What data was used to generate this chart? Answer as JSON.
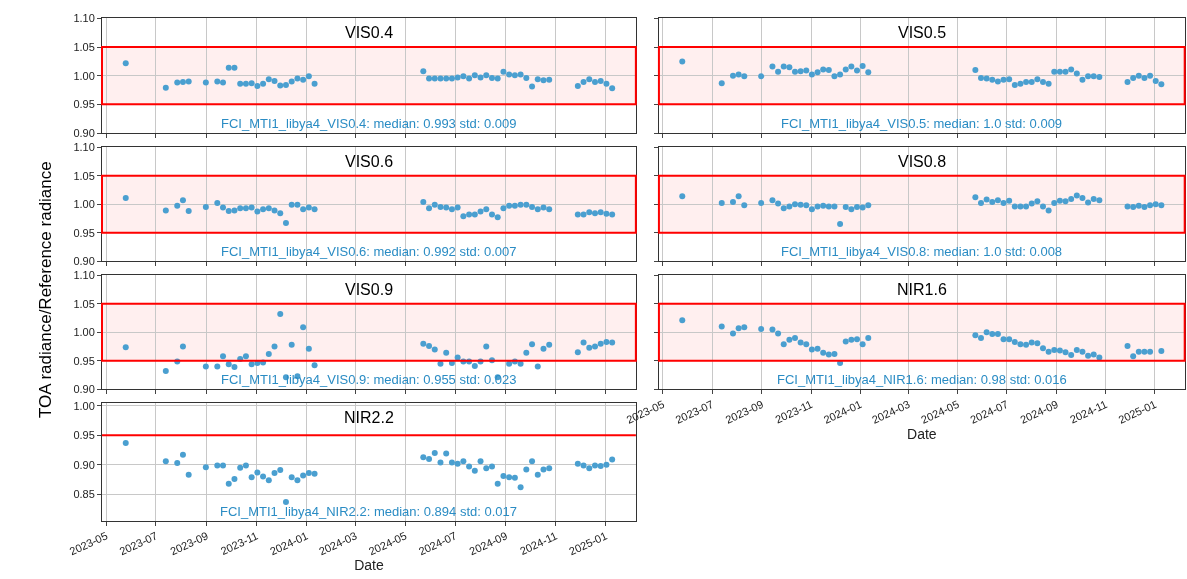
{
  "chart_data": [
    {
      "type": "scatter",
      "title": "VIS0.4",
      "color": "#4a9fd0",
      "marker": "circle",
      "grid": true,
      "tick_labels": "y",
      "x": [
        "2023-05-25",
        "2023-07-13",
        "2023-07-27",
        "2023-08-03",
        "2023-08-10",
        "2023-08-31",
        "2023-09-14",
        "2023-09-21",
        "2023-09-28",
        "2023-10-05",
        "2023-10-12",
        "2023-10-19",
        "2023-10-26",
        "2023-11-02",
        "2023-11-09",
        "2023-11-16",
        "2023-11-23",
        "2023-11-30",
        "2023-12-07",
        "2023-12-14",
        "2023-12-21",
        "2023-12-28",
        "2024-01-04",
        "2024-01-11",
        "2024-05-23",
        "2024-05-30",
        "2024-06-06",
        "2024-06-13",
        "2024-06-20",
        "2024-06-27",
        "2024-07-04",
        "2024-07-11",
        "2024-07-18",
        "2024-07-25",
        "2024-08-01",
        "2024-08-08",
        "2024-08-15",
        "2024-08-22",
        "2024-08-29",
        "2024-09-05",
        "2024-09-12",
        "2024-09-19",
        "2024-09-26",
        "2024-10-03",
        "2024-10-10",
        "2024-10-17",
        "2024-10-24",
        "2024-11-28",
        "2024-12-05",
        "2024-12-12",
        "2024-12-19",
        "2024-12-26",
        "2025-01-02",
        "2025-01-09"
      ],
      "values": [
        1.022,
        0.979,
        0.988,
        0.989,
        0.99,
        0.988,
        0.99,
        0.988,
        1.014,
        1.014,
        0.986,
        0.986,
        0.987,
        0.982,
        0.986,
        0.994,
        0.991,
        0.983,
        0.984,
        0.99,
        0.995,
        0.993,
        0.999,
        0.986,
        1.008,
        0.995,
        0.995,
        0.995,
        0.995,
        0.995,
        0.997,
        0.999,
        0.995,
        1.001,
        0.997,
        1.001,
        0.996,
        0.995,
        1.007,
        1.002,
        1.001,
        1.002,
        0.996,
        0.981,
        0.994,
        0.992,
        0.993,
        0.982,
        0.989,
        0.994,
        0.989,
        0.991,
        0.986,
        0.978
      ],
      "xlim": [
        "2023-04-26",
        "2025-02-07"
      ],
      "xticks": [
        {
          "value": "2023-05-01",
          "label": null
        },
        {
          "value": "2023-07-01",
          "label": null
        },
        {
          "value": "2023-09-01",
          "label": null
        },
        {
          "value": "2023-11-01",
          "label": null
        },
        {
          "value": "2024-01-01",
          "label": null
        },
        {
          "value": "2024-03-01",
          "label": null
        },
        {
          "value": "2024-05-01",
          "label": null
        },
        {
          "value": "2024-07-01",
          "label": null
        },
        {
          "value": "2024-09-01",
          "label": null
        },
        {
          "value": "2024-11-01",
          "label": null
        },
        {
          "value": "2025-01-01",
          "label": null
        }
      ],
      "ylim": [
        0.9,
        1.1
      ],
      "yticks": [
        {
          "value": 0.9,
          "label": "0.90"
        },
        {
          "value": 0.95,
          "label": "0.95"
        },
        {
          "value": 1.0,
          "label": "1.00"
        },
        {
          "value": 1.05,
          "label": "1.05"
        },
        {
          "value": 1.1,
          "label": "1.10"
        }
      ],
      "bands": [
        {
          "axis": "y",
          "from": 0.95,
          "to": 1.05,
          "color": "#ff0000"
        }
      ],
      "annotations": [
        "FCI_MTI1_libya4_VIS0.4: median: 0.993 std: 0.009"
      ]
    },
    {
      "type": "scatter",
      "title": "VIS0.5",
      "color": "#4a9fd0",
      "marker": "circle",
      "grid": true,
      "tick_labels": false,
      "x": [
        "2023-05-25",
        "2023-07-13",
        "2023-07-27",
        "2023-08-03",
        "2023-08-10",
        "2023-08-31",
        "2023-09-14",
        "2023-09-21",
        "2023-09-28",
        "2023-10-05",
        "2023-10-12",
        "2023-10-19",
        "2023-10-26",
        "2023-11-02",
        "2023-11-09",
        "2023-11-16",
        "2023-11-23",
        "2023-11-30",
        "2023-12-07",
        "2023-12-14",
        "2023-12-21",
        "2023-12-28",
        "2024-01-04",
        "2024-01-11",
        "2024-05-23",
        "2024-05-30",
        "2024-06-06",
        "2024-06-13",
        "2024-06-20",
        "2024-06-27",
        "2024-07-04",
        "2024-07-11",
        "2024-07-18",
        "2024-07-25",
        "2024-08-01",
        "2024-08-08",
        "2024-08-15",
        "2024-08-22",
        "2024-08-29",
        "2024-09-05",
        "2024-09-12",
        "2024-09-19",
        "2024-09-26",
        "2024-10-03",
        "2024-10-10",
        "2024-10-17",
        "2024-10-24",
        "2024-11-28",
        "2024-12-05",
        "2024-12-12",
        "2024-12-19",
        "2024-12-26",
        "2025-01-02",
        "2025-01-09"
      ],
      "values": [
        1.025,
        0.987,
        1.0,
        1.002,
        0.999,
        0.999,
        1.016,
        1.007,
        1.016,
        1.015,
        1.007,
        1.008,
        1.009,
        1.002,
        1.006,
        1.011,
        1.01,
        0.999,
        1.002,
        1.011,
        1.016,
        1.009,
        1.017,
        1.006,
        1.01,
        0.996,
        0.995,
        0.993,
        0.99,
        0.993,
        0.994,
        0.984,
        0.986,
        0.989,
        0.989,
        0.994,
        0.989,
        0.986,
        1.007,
        1.007,
        1.007,
        1.011,
        1.004,
        0.993,
        0.999,
        0.999,
        0.998,
        0.989,
        0.996,
        1.0,
        0.996,
        1.0,
        0.991,
        0.985
      ],
      "xlim": [
        "2023-04-26",
        "2025-02-07"
      ],
      "xticks": [
        {
          "value": "2023-05-01",
          "label": null
        },
        {
          "value": "2023-07-01",
          "label": null
        },
        {
          "value": "2023-09-01",
          "label": null
        },
        {
          "value": "2023-11-01",
          "label": null
        },
        {
          "value": "2024-01-01",
          "label": null
        },
        {
          "value": "2024-03-01",
          "label": null
        },
        {
          "value": "2024-05-01",
          "label": null
        },
        {
          "value": "2024-07-01",
          "label": null
        },
        {
          "value": "2024-09-01",
          "label": null
        },
        {
          "value": "2024-11-01",
          "label": null
        },
        {
          "value": "2025-01-01",
          "label": null
        }
      ],
      "ylim": [
        0.9,
        1.1
      ],
      "yticks": [
        {
          "value": 0.9,
          "label": null
        },
        {
          "value": 0.95,
          "label": null
        },
        {
          "value": 1.0,
          "label": null
        },
        {
          "value": 1.05,
          "label": null
        },
        {
          "value": 1.1,
          "label": null
        }
      ],
      "bands": [
        {
          "axis": "y",
          "from": 0.95,
          "to": 1.05,
          "color": "#ff0000"
        }
      ],
      "annotations": [
        "FCI_MTI1_libya4_VIS0.5: median: 1.0 std: 0.009"
      ]
    },
    {
      "type": "scatter",
      "title": "VIS0.6",
      "color": "#4a9fd0",
      "marker": "circle",
      "grid": true,
      "tick_labels": "y",
      "x": [
        "2023-05-25",
        "2023-07-13",
        "2023-07-27",
        "2023-08-03",
        "2023-08-10",
        "2023-08-31",
        "2023-09-14",
        "2023-09-21",
        "2023-09-28",
        "2023-10-05",
        "2023-10-12",
        "2023-10-19",
        "2023-10-26",
        "2023-11-02",
        "2023-11-09",
        "2023-11-16",
        "2023-11-23",
        "2023-11-30",
        "2023-12-07",
        "2023-12-14",
        "2023-12-21",
        "2023-12-28",
        "2024-01-04",
        "2024-01-11",
        "2024-05-23",
        "2024-05-30",
        "2024-06-06",
        "2024-06-13",
        "2024-06-20",
        "2024-06-27",
        "2024-07-04",
        "2024-07-11",
        "2024-07-18",
        "2024-07-25",
        "2024-08-01",
        "2024-08-08",
        "2024-08-15",
        "2024-08-22",
        "2024-08-29",
        "2024-09-05",
        "2024-09-12",
        "2024-09-19",
        "2024-09-26",
        "2024-10-03",
        "2024-10-10",
        "2024-10-17",
        "2024-10-24",
        "2024-11-28",
        "2024-12-05",
        "2024-12-12",
        "2024-12-19",
        "2024-12-26",
        "2025-01-02",
        "2025-01-09"
      ],
      "values": [
        1.011,
        0.989,
        0.997,
        1.007,
        0.988,
        0.995,
        1.002,
        0.994,
        0.988,
        0.989,
        0.993,
        0.993,
        0.994,
        0.987,
        0.991,
        0.993,
        0.989,
        0.984,
        0.967,
        0.999,
        0.999,
        0.991,
        0.994,
        0.991,
        1.004,
        0.993,
        0.999,
        0.995,
        0.994,
        0.991,
        0.994,
        0.979,
        0.982,
        0.982,
        0.987,
        0.991,
        0.982,
        0.977,
        0.993,
        0.997,
        0.997,
        0.999,
        0.999,
        0.995,
        0.991,
        0.994,
        0.991,
        0.982,
        0.982,
        0.986,
        0.984,
        0.986,
        0.983,
        0.982
      ],
      "xlim": [
        "2023-04-26",
        "2025-02-07"
      ],
      "xticks": [
        {
          "value": "2023-05-01",
          "label": null
        },
        {
          "value": "2023-07-01",
          "label": null
        },
        {
          "value": "2023-09-01",
          "label": null
        },
        {
          "value": "2023-11-01",
          "label": null
        },
        {
          "value": "2024-01-01",
          "label": null
        },
        {
          "value": "2024-03-01",
          "label": null
        },
        {
          "value": "2024-05-01",
          "label": null
        },
        {
          "value": "2024-07-01",
          "label": null
        },
        {
          "value": "2024-09-01",
          "label": null
        },
        {
          "value": "2024-11-01",
          "label": null
        },
        {
          "value": "2025-01-01",
          "label": null
        }
      ],
      "ylim": [
        0.9,
        1.1
      ],
      "yticks": [
        {
          "value": 0.9,
          "label": "0.90"
        },
        {
          "value": 0.95,
          "label": "0.95"
        },
        {
          "value": 1.0,
          "label": "1.00"
        },
        {
          "value": 1.05,
          "label": "1.05"
        },
        {
          "value": 1.1,
          "label": "1.10"
        }
      ],
      "bands": [
        {
          "axis": "y",
          "from": 0.95,
          "to": 1.05,
          "color": "#ff0000"
        }
      ],
      "annotations": [
        "FCI_MTI1_libya4_VIS0.6: median: 0.992 std: 0.007"
      ]
    },
    {
      "type": "scatter",
      "title": "VIS0.8",
      "color": "#4a9fd0",
      "marker": "circle",
      "grid": true,
      "tick_labels": false,
      "x": [
        "2023-05-25",
        "2023-07-13",
        "2023-07-27",
        "2023-08-03",
        "2023-08-10",
        "2023-08-31",
        "2023-09-14",
        "2023-09-21",
        "2023-09-28",
        "2023-10-05",
        "2023-10-12",
        "2023-10-19",
        "2023-10-26",
        "2023-11-02",
        "2023-11-09",
        "2023-11-16",
        "2023-11-23",
        "2023-11-30",
        "2023-12-07",
        "2023-12-14",
        "2023-12-21",
        "2023-12-28",
        "2024-01-04",
        "2024-01-11",
        "2024-05-23",
        "2024-05-30",
        "2024-06-06",
        "2024-06-13",
        "2024-06-20",
        "2024-06-27",
        "2024-07-04",
        "2024-07-11",
        "2024-07-18",
        "2024-07-25",
        "2024-08-01",
        "2024-08-08",
        "2024-08-15",
        "2024-08-22",
        "2024-08-29",
        "2024-09-05",
        "2024-09-12",
        "2024-09-19",
        "2024-09-26",
        "2024-10-03",
        "2024-10-10",
        "2024-10-17",
        "2024-10-24",
        "2024-11-28",
        "2024-12-05",
        "2024-12-12",
        "2024-12-19",
        "2024-12-26",
        "2025-01-02",
        "2025-01-09"
      ],
      "values": [
        1.014,
        1.002,
        1.004,
        1.014,
        0.998,
        1.002,
        1.007,
        1.001,
        0.993,
        0.996,
        1.0,
        0.999,
        0.998,
        0.991,
        0.996,
        0.997,
        0.996,
        0.996,
        0.965,
        0.995,
        0.991,
        0.995,
        0.994,
        0.998,
        1.012,
        1.002,
        1.008,
        1.004,
        1.007,
        1.002,
        1.006,
        0.996,
        0.996,
        0.996,
        1.001,
        1.005,
        0.996,
        0.989,
        1.002,
        1.006,
        1.005,
        1.009,
        1.015,
        1.011,
        1.003,
        1.009,
        1.007,
        0.996,
        0.995,
        0.997,
        0.995,
        0.998,
        1.0,
        0.998
      ],
      "xlim": [
        "2023-04-26",
        "2025-02-07"
      ],
      "xticks": [
        {
          "value": "2023-05-01",
          "label": null
        },
        {
          "value": "2023-07-01",
          "label": null
        },
        {
          "value": "2023-09-01",
          "label": null
        },
        {
          "value": "2023-11-01",
          "label": null
        },
        {
          "value": "2024-01-01",
          "label": null
        },
        {
          "value": "2024-03-01",
          "label": null
        },
        {
          "value": "2024-05-01",
          "label": null
        },
        {
          "value": "2024-07-01",
          "label": null
        },
        {
          "value": "2024-09-01",
          "label": null
        },
        {
          "value": "2024-11-01",
          "label": null
        },
        {
          "value": "2025-01-01",
          "label": null
        }
      ],
      "ylim": [
        0.9,
        1.1
      ],
      "yticks": [
        {
          "value": 0.9,
          "label": null
        },
        {
          "value": 0.95,
          "label": null
        },
        {
          "value": 1.0,
          "label": null
        },
        {
          "value": 1.05,
          "label": null
        },
        {
          "value": 1.1,
          "label": null
        }
      ],
      "bands": [
        {
          "axis": "y",
          "from": 0.95,
          "to": 1.05,
          "color": "#ff0000"
        }
      ],
      "annotations": [
        "FCI_MTI1_libya4_VIS0.8: median: 1.0 std: 0.008"
      ]
    },
    {
      "type": "scatter",
      "title": "VIS0.9",
      "ylabel": "TOA radiance/Reference radiance",
      "color": "#4a9fd0",
      "marker": "circle",
      "grid": true,
      "tick_labels": "y",
      "x": [
        "2023-05-25",
        "2023-07-13",
        "2023-07-27",
        "2023-08-03",
        "2023-08-10",
        "2023-08-31",
        "2023-09-14",
        "2023-09-21",
        "2023-09-28",
        "2023-10-05",
        "2023-10-12",
        "2023-10-19",
        "2023-10-26",
        "2023-11-02",
        "2023-11-09",
        "2023-11-16",
        "2023-11-23",
        "2023-11-30",
        "2023-12-07",
        "2023-12-14",
        "2023-12-21",
        "2023-12-28",
        "2024-01-04",
        "2024-01-11",
        "2024-05-23",
        "2024-05-30",
        "2024-06-06",
        "2024-06-13",
        "2024-06-20",
        "2024-06-27",
        "2024-07-04",
        "2024-07-11",
        "2024-07-18",
        "2024-07-25",
        "2024-08-01",
        "2024-08-08",
        "2024-08-15",
        "2024-08-22",
        "2024-08-29",
        "2024-09-05",
        "2024-09-12",
        "2024-09-19",
        "2024-09-26",
        "2024-10-03",
        "2024-10-10",
        "2024-10-17",
        "2024-10-24",
        "2024-11-28",
        "2024-12-05",
        "2024-12-12",
        "2024-12-19",
        "2024-12-26",
        "2025-01-02",
        "2025-01-09"
      ],
      "values": [
        0.974,
        0.932,
        0.949,
        0.975,
        null,
        0.94,
        0.94,
        0.958,
        0.944,
        0.939,
        0.953,
        0.958,
        0.944,
        0.946,
        0.947,
        0.962,
        0.975,
        1.032,
        0.921,
        0.978,
        0.923,
        1.009,
        0.971,
        0.942,
        0.98,
        0.976,
        0.97,
        0.945,
        0.964,
        0.946,
        0.956,
        0.949,
        0.949,
        0.941,
        0.949,
        0.975,
        0.951,
        0.921,
        null,
        0.945,
        0.949,
        0.945,
        0.964,
        0.979,
        0.94,
        0.971,
        0.978,
        0.965,
        0.982,
        0.973,
        0.975,
        0.98,
        0.983,
        0.982
      ],
      "xlim": [
        "2023-04-26",
        "2025-02-07"
      ],
      "xticks": [
        {
          "value": "2023-05-01",
          "label": null
        },
        {
          "value": "2023-07-01",
          "label": null
        },
        {
          "value": "2023-09-01",
          "label": null
        },
        {
          "value": "2023-11-01",
          "label": null
        },
        {
          "value": "2024-01-01",
          "label": null
        },
        {
          "value": "2024-03-01",
          "label": null
        },
        {
          "value": "2024-05-01",
          "label": null
        },
        {
          "value": "2024-07-01",
          "label": null
        },
        {
          "value": "2024-09-01",
          "label": null
        },
        {
          "value": "2024-11-01",
          "label": null
        },
        {
          "value": "2025-01-01",
          "label": null
        }
      ],
      "ylim": [
        0.9,
        1.1
      ],
      "yticks": [
        {
          "value": 0.9,
          "label": "0.90"
        },
        {
          "value": 0.95,
          "label": "0.95"
        },
        {
          "value": 1.0,
          "label": "1.00"
        },
        {
          "value": 1.05,
          "label": "1.05"
        },
        {
          "value": 1.1,
          "label": "1.10"
        }
      ],
      "bands": [
        {
          "axis": "y",
          "from": 0.95,
          "to": 1.05,
          "color": "#ff0000"
        }
      ],
      "annotations": [
        "FCI_MTI1_libya4_VIS0.9: median: 0.955 std: 0.023"
      ]
    },
    {
      "type": "scatter",
      "title": "NIR1.6",
      "xlabel": "Date",
      "color": "#4a9fd0",
      "marker": "circle",
      "grid": true,
      "tick_labels": "x",
      "x": [
        "2023-05-25",
        "2023-07-13",
        "2023-07-27",
        "2023-08-03",
        "2023-08-10",
        "2023-08-31",
        "2023-09-14",
        "2023-09-21",
        "2023-09-28",
        "2023-10-05",
        "2023-10-12",
        "2023-10-19",
        "2023-10-26",
        "2023-11-02",
        "2023-11-09",
        "2023-11-16",
        "2023-11-23",
        "2023-11-30",
        "2023-12-07",
        "2023-12-14",
        "2023-12-21",
        "2023-12-28",
        "2024-01-04",
        "2024-01-11",
        "2024-05-23",
        "2024-05-30",
        "2024-06-06",
        "2024-06-13",
        "2024-06-20",
        "2024-06-27",
        "2024-07-04",
        "2024-07-11",
        "2024-07-18",
        "2024-07-25",
        "2024-08-01",
        "2024-08-08",
        "2024-08-15",
        "2024-08-22",
        "2024-08-29",
        "2024-09-05",
        "2024-09-12",
        "2024-09-19",
        "2024-09-26",
        "2024-10-03",
        "2024-10-10",
        "2024-10-17",
        "2024-10-24",
        "2024-11-28",
        "2024-12-05",
        "2024-12-12",
        "2024-12-19",
        "2024-12-26",
        "2025-01-02",
        "2025-01-09"
      ],
      "values": [
        1.021,
        1.01,
        0.998,
        1.007,
        1.009,
        1.006,
        1.005,
        0.998,
        0.979,
        0.987,
        0.99,
        0.982,
        0.979,
        0.97,
        0.971,
        0.964,
        0.961,
        0.962,
        0.946,
        0.984,
        0.987,
        0.988,
        0.979,
        0.99,
        0.995,
        0.99,
        1.0,
        0.997,
        0.997,
        0.988,
        0.988,
        0.983,
        0.979,
        0.978,
        0.982,
        0.981,
        0.972,
        0.966,
        0.969,
        0.968,
        0.965,
        0.96,
        0.969,
        0.966,
        0.959,
        0.961,
        0.956,
        0.976,
        0.958,
        0.966,
        0.966,
        0.966,
        null,
        0.967
      ],
      "xlim": [
        "2023-04-26",
        "2025-02-07"
      ],
      "xticks": [
        {
          "value": "2023-05-01",
          "label": "2023-05"
        },
        {
          "value": "2023-07-01",
          "label": "2023-07"
        },
        {
          "value": "2023-09-01",
          "label": "2023-09"
        },
        {
          "value": "2023-11-01",
          "label": "2023-11"
        },
        {
          "value": "2024-01-01",
          "label": "2024-01"
        },
        {
          "value": "2024-03-01",
          "label": "2024-03"
        },
        {
          "value": "2024-05-01",
          "label": "2024-05"
        },
        {
          "value": "2024-07-01",
          "label": "2024-07"
        },
        {
          "value": "2024-09-01",
          "label": "2024-09"
        },
        {
          "value": "2024-11-01",
          "label": "2024-11"
        },
        {
          "value": "2025-01-01",
          "label": "2025-01"
        }
      ],
      "ylim": [
        0.9,
        1.1
      ],
      "yticks": [
        {
          "value": 0.9,
          "label": null
        },
        {
          "value": 0.95,
          "label": null
        },
        {
          "value": 1.0,
          "label": null
        },
        {
          "value": 1.05,
          "label": null
        },
        {
          "value": 1.1,
          "label": null
        }
      ],
      "bands": [
        {
          "axis": "y",
          "from": 0.95,
          "to": 1.05,
          "color": "#ff0000"
        }
      ],
      "annotations": [
        "FCI_MTI1_libya4_NIR1.6: median: 0.98 std: 0.016"
      ]
    },
    {
      "type": "scatter",
      "title": "NIR2.2",
      "xlabel": "Date",
      "color": "#4a9fd0",
      "marker": "circle",
      "grid": true,
      "x": [
        "2023-05-25",
        "2023-07-13",
        "2023-07-27",
        "2023-08-03",
        "2023-08-10",
        "2023-08-31",
        "2023-09-14",
        "2023-09-21",
        "2023-09-28",
        "2023-10-05",
        "2023-10-12",
        "2023-10-19",
        "2023-10-26",
        "2023-11-02",
        "2023-11-09",
        "2023-11-16",
        "2023-11-23",
        "2023-11-30",
        "2023-12-07",
        "2023-12-14",
        "2023-12-21",
        "2023-12-28",
        "2024-01-04",
        "2024-01-11",
        "2024-05-23",
        "2024-05-30",
        "2024-06-06",
        "2024-06-13",
        "2024-06-20",
        "2024-06-27",
        "2024-07-04",
        "2024-07-11",
        "2024-07-18",
        "2024-07-25",
        "2024-08-01",
        "2024-08-08",
        "2024-08-15",
        "2024-08-22",
        "2024-08-29",
        "2024-09-05",
        "2024-09-12",
        "2024-09-19",
        "2024-09-26",
        "2024-10-03",
        "2024-10-10",
        "2024-10-17",
        "2024-10-24",
        "2024-11-28",
        "2024-12-05",
        "2024-12-12",
        "2024-12-19",
        "2024-12-26",
        "2025-01-02",
        "2025-01-09"
      ],
      "values": [
        0.937,
        0.906,
        0.903,
        0.917,
        0.883,
        0.896,
        0.899,
        0.899,
        0.868,
        0.876,
        0.895,
        0.899,
        0.879,
        0.887,
        0.88,
        0.874,
        0.886,
        0.891,
        0.837,
        0.879,
        0.874,
        0.882,
        0.886,
        0.885,
        0.913,
        0.91,
        0.92,
        0.904,
        0.919,
        0.904,
        0.902,
        0.906,
        0.897,
        0.89,
        0.906,
        0.894,
        0.897,
        0.868,
        0.881,
        0.879,
        0.878,
        0.862,
        0.892,
        0.906,
        0.883,
        0.892,
        0.894,
        0.902,
        0.899,
        0.894,
        0.899,
        0.898,
        0.9,
        0.909
      ],
      "xlim": [
        "2023-04-26",
        "2025-02-07"
      ],
      "xticks": [
        {
          "value": "2023-05-01",
          "label": "2023-05"
        },
        {
          "value": "2023-07-01",
          "label": "2023-07"
        },
        {
          "value": "2023-09-01",
          "label": "2023-09"
        },
        {
          "value": "2023-11-01",
          "label": "2023-11"
        },
        {
          "value": "2024-01-01",
          "label": "2024-01"
        },
        {
          "value": "2024-03-01",
          "label": "2024-03"
        },
        {
          "value": "2024-05-01",
          "label": "2024-05"
        },
        {
          "value": "2024-07-01",
          "label": "2024-07"
        },
        {
          "value": "2024-09-01",
          "label": "2024-09"
        },
        {
          "value": "2024-11-01",
          "label": "2024-11"
        },
        {
          "value": "2025-01-01",
          "label": "2025-01"
        }
      ],
      "ylim": [
        0.805,
        1.004
      ],
      "yticks": [
        {
          "value": 0.85,
          "label": "0.85"
        },
        {
          "value": 0.9,
          "label": "0.90"
        },
        {
          "value": 0.95,
          "label": "0.95"
        },
        {
          "value": 1.0,
          "label": "1.00"
        }
      ],
      "ref_lines": [
        {
          "axis": "y",
          "value": 0.95,
          "color": "#ff0000"
        }
      ],
      "annotations": [
        "FCI_MTI1_libya4_NIR2.2: median: 0.894 std: 0.017"
      ]
    }
  ]
}
